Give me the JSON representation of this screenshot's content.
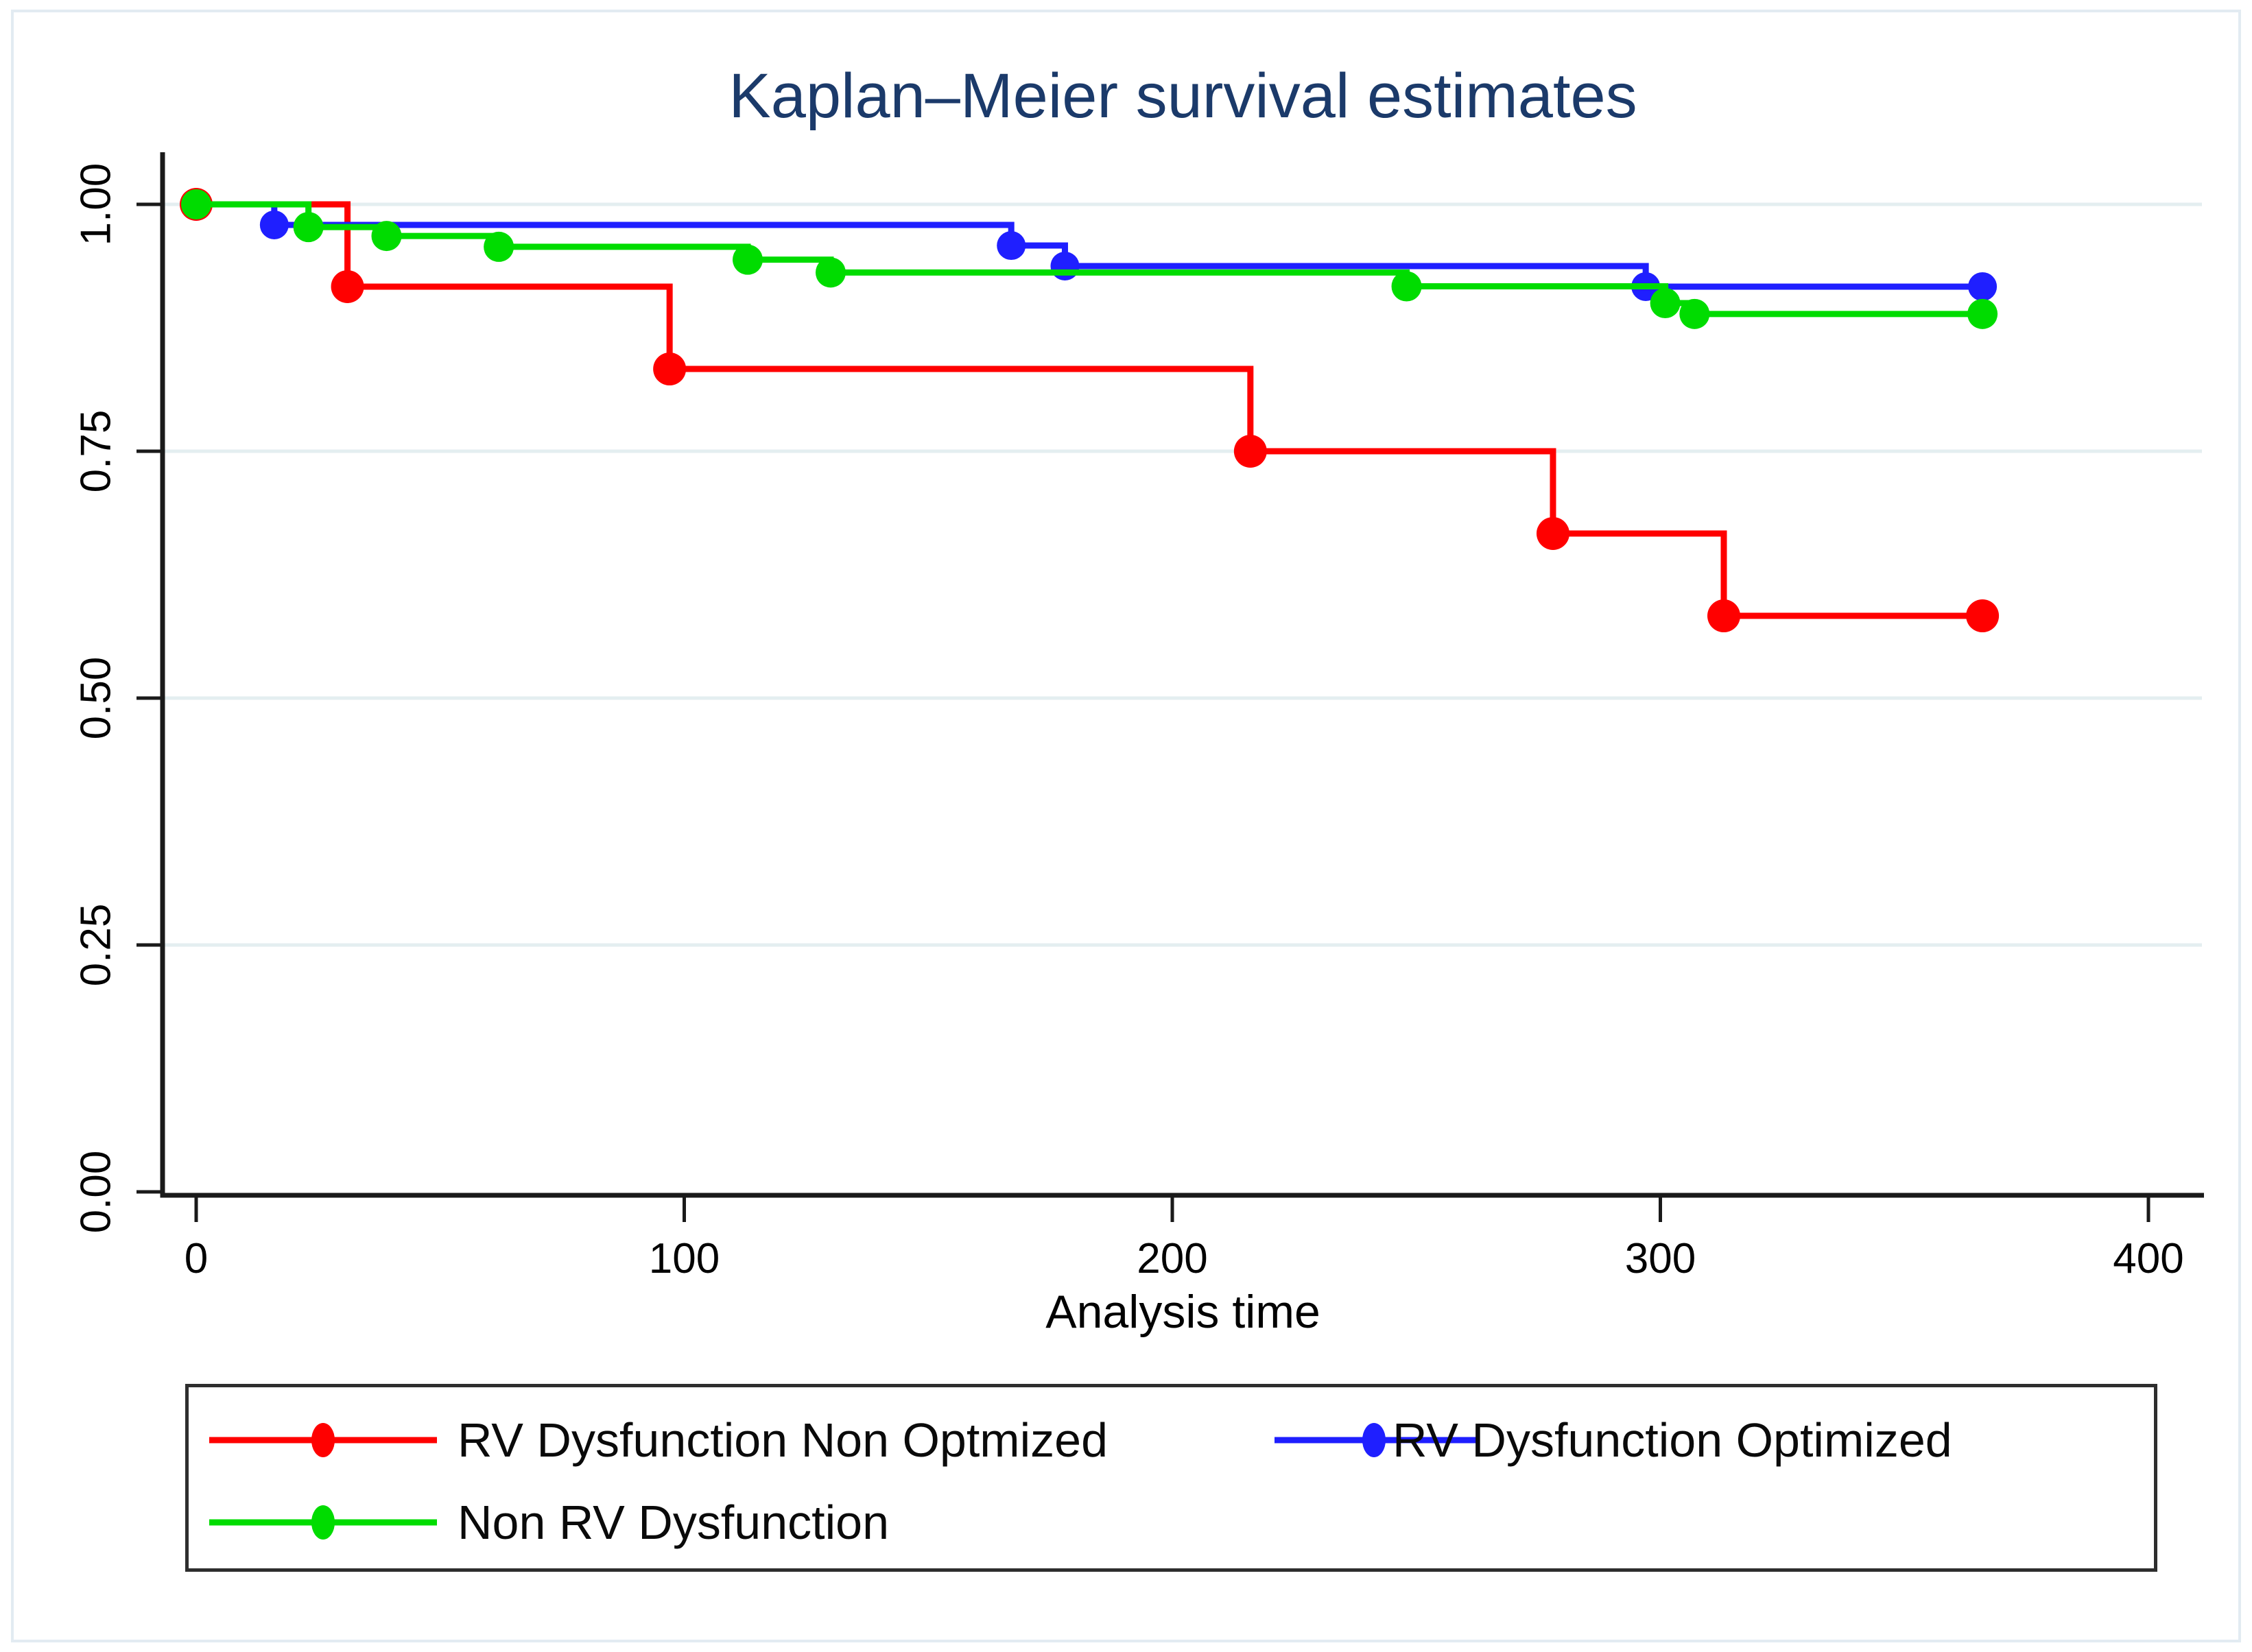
{
  "figure": {
    "background": "#ffffff",
    "frame_color": "#e2ebf2"
  },
  "chart_data": {
    "type": "line",
    "km_step": true,
    "title": "Kaplan–Meier survival estimates",
    "title_color": "#1b3a6a",
    "xlabel": "Analysis time",
    "ylabel": "",
    "xlim": [
      0,
      400
    ],
    "ylim": [
      0,
      1
    ],
    "x_ticks": [
      0,
      100,
      200,
      300,
      400
    ],
    "y_ticks": [
      {
        "value": 0.0,
        "label": "0.00"
      },
      {
        "value": 0.25,
        "label": "0.25"
      },
      {
        "value": 0.5,
        "label": "0.50"
      },
      {
        "value": 0.75,
        "label": "0.75"
      },
      {
        "value": 1.0,
        "label": "1.00"
      }
    ],
    "grid": {
      "horizontal_only": true,
      "y_values": [
        0.25,
        0.5,
        0.75,
        1.0
      ],
      "color": "#e4eef0"
    },
    "axis_color": "#1a1a1a",
    "tick_label_color": "#000000",
    "series": [
      {
        "name": "RV Dysfunction Non Optmized",
        "color": "#ff0000",
        "marker": "circle",
        "marker_r": 24,
        "points": [
          [
            0,
            1.0
          ],
          [
            31,
            0.9167
          ],
          [
            97,
            0.8333
          ],
          [
            216,
            0.75
          ],
          [
            278,
            0.6667
          ],
          [
            313,
            0.5833
          ],
          [
            366,
            0.5833
          ]
        ]
      },
      {
        "name": "RV Dysfunction Optimized",
        "color": "#1f1fff",
        "marker": "circle",
        "marker_r": 21,
        "points": [
          [
            0,
            1.0
          ],
          [
            16,
            0.9792
          ],
          [
            167,
            0.9583
          ],
          [
            178,
            0.9375
          ],
          [
            297,
            0.9167
          ],
          [
            366,
            0.9167
          ]
        ]
      },
      {
        "name": "Non RV Dysfunction",
        "color": "#00dc00",
        "marker": "circle",
        "marker_r": 22,
        "points": [
          [
            0,
            1.0
          ],
          [
            23,
            0.977
          ],
          [
            39,
            0.968
          ],
          [
            62,
            0.957
          ],
          [
            113,
            0.944
          ],
          [
            130,
            0.931
          ],
          [
            248,
            0.917
          ],
          [
            301,
            0.9
          ],
          [
            307,
            0.889
          ],
          [
            366,
            0.889
          ]
        ]
      }
    ],
    "legend": {
      "position": "bottom",
      "border_color": "#2e2e2e",
      "columns": 2
    }
  }
}
